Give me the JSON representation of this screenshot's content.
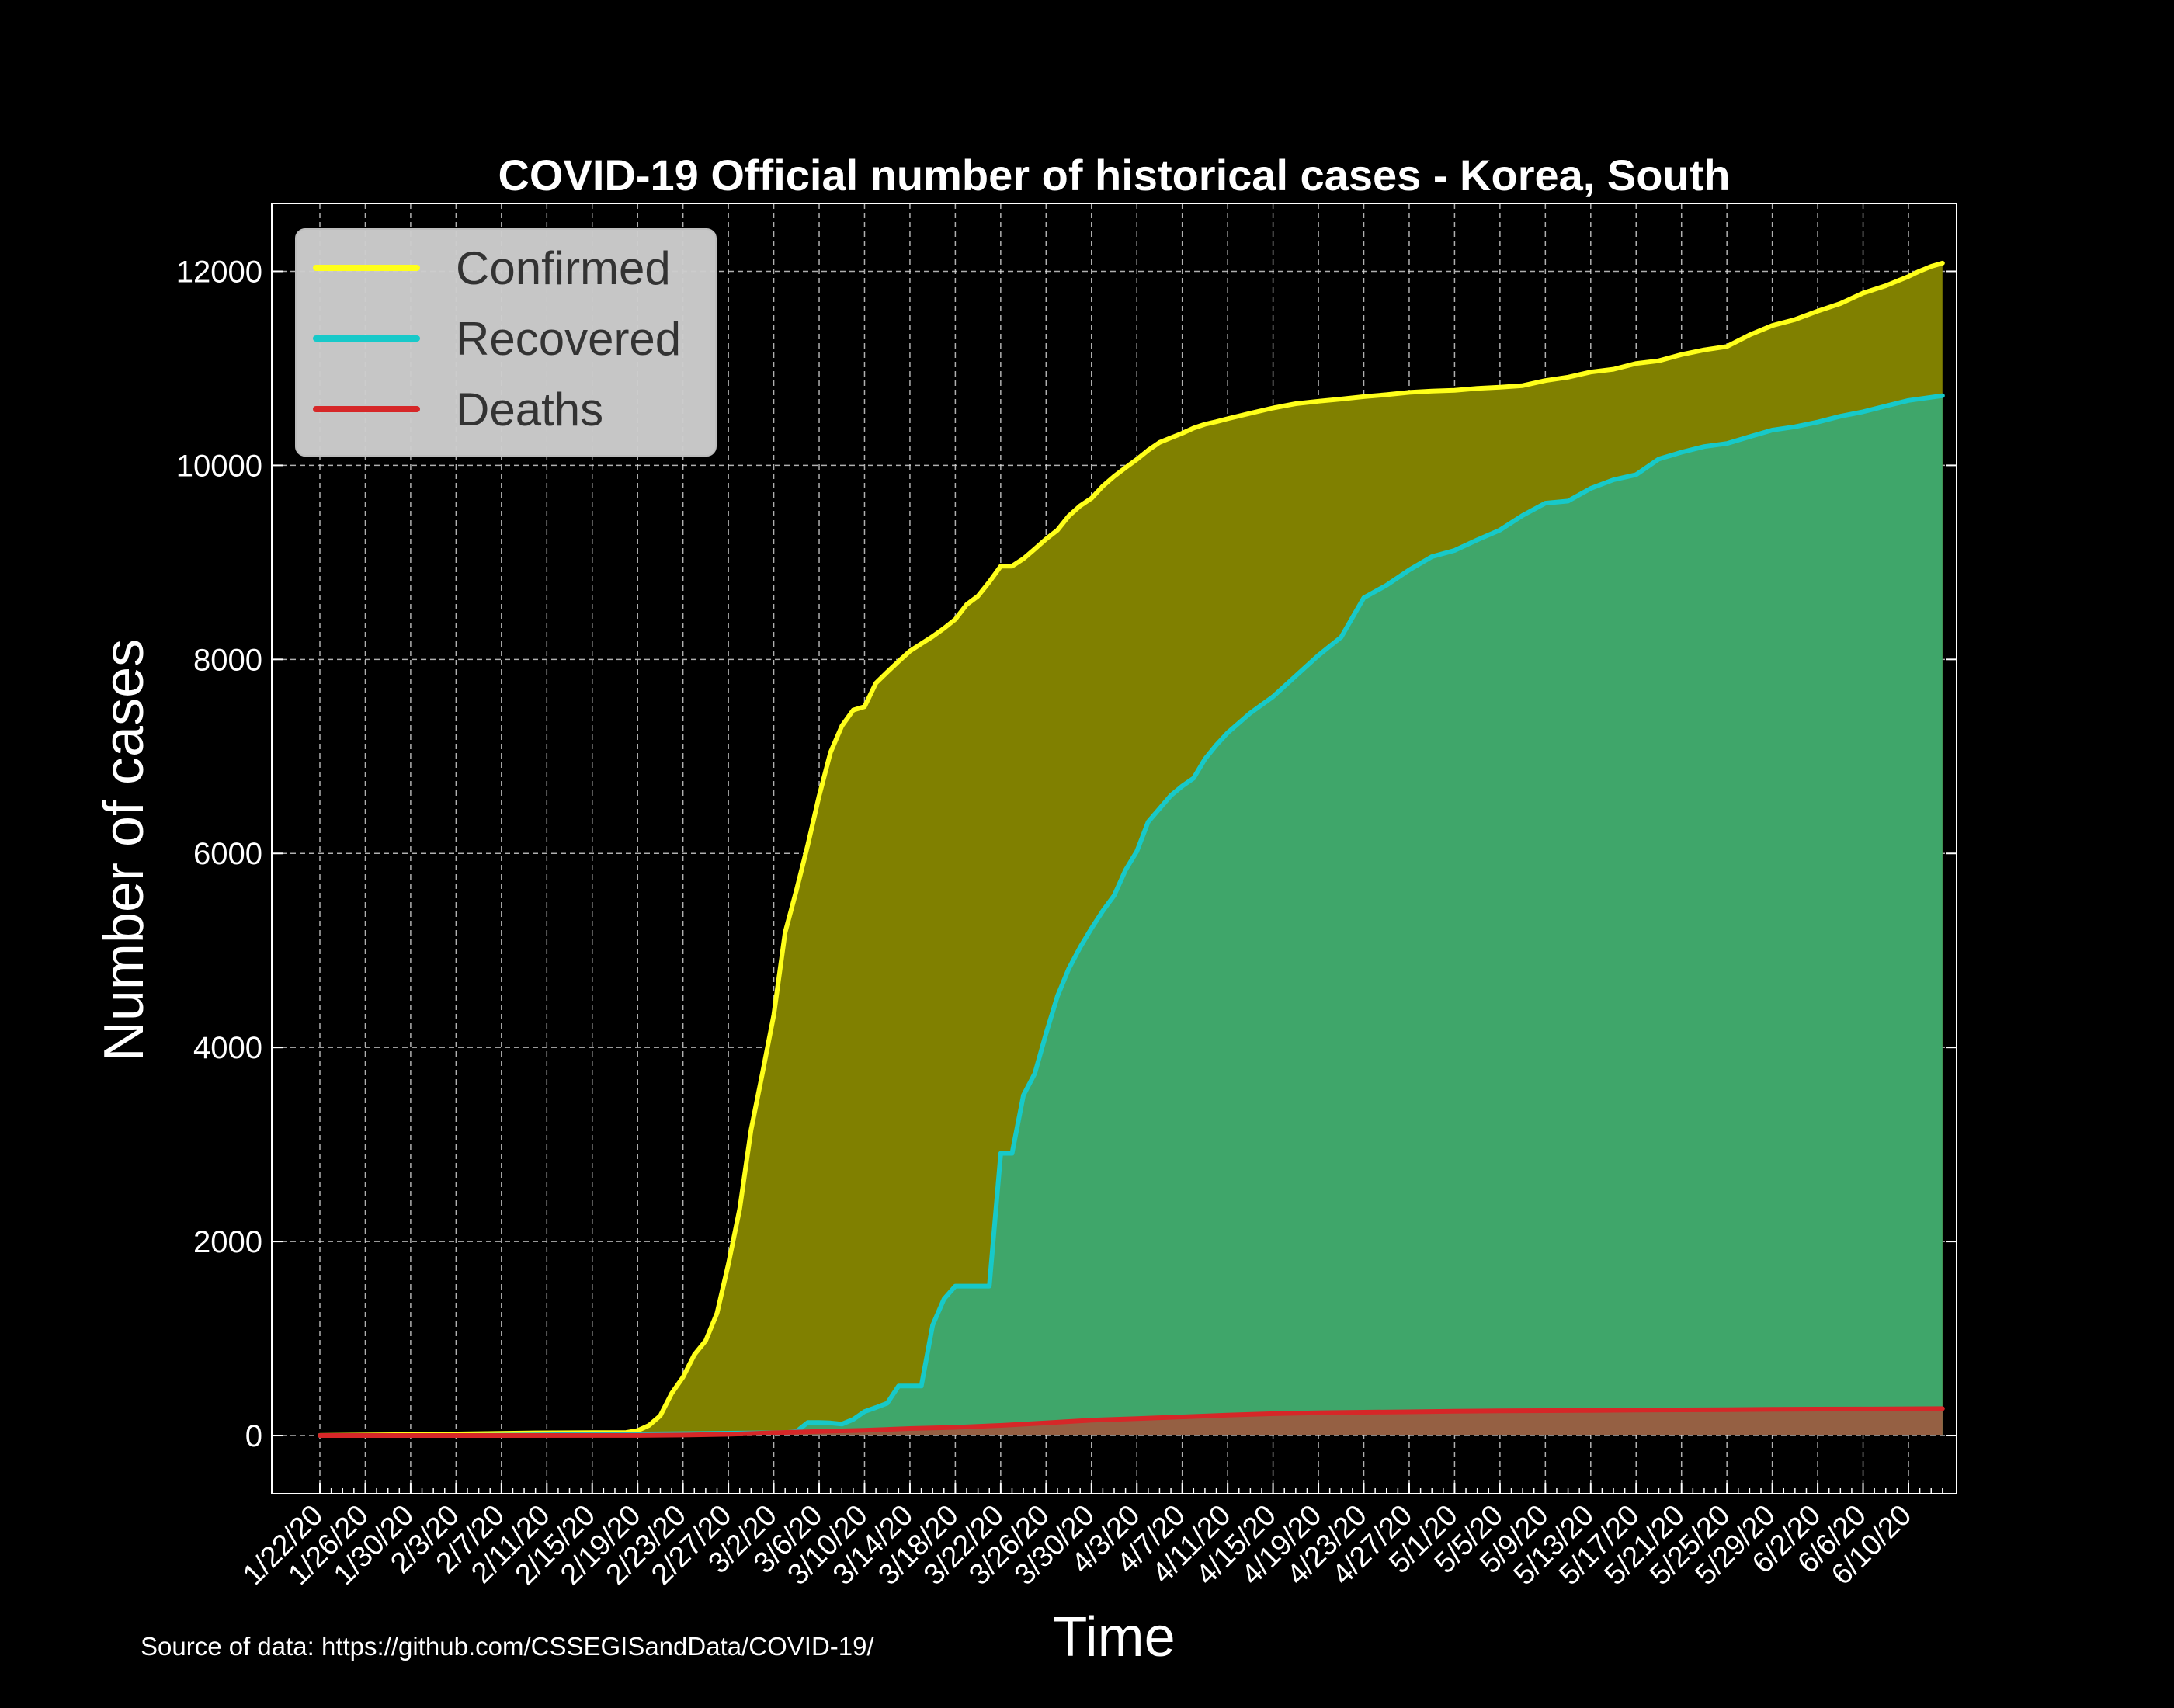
{
  "colors": {
    "background": "#000000",
    "confirmed_line": "#ffff1a",
    "confirmed_fill": "#808000",
    "recovered_line": "#17c9c9",
    "recovered_fill": "#3fa66a",
    "deaths_line": "#d62728",
    "deaths_fill": "#956043",
    "grid": "#dddddd",
    "legend_bg": "#cccccc"
  },
  "source_text": "Source of data: https://github.com/CSSEGISandData/COVID-19/",
  "chart_data": {
    "type": "area",
    "title": "COVID-19 Official number of historical cases - Korea, South",
    "xlabel": "Time",
    "ylabel": "Number of cases",
    "ylim": [
      -600,
      12700
    ],
    "yticks": [
      0,
      2000,
      4000,
      6000,
      8000,
      10000,
      12000
    ],
    "grid": true,
    "legend_position": "top-left",
    "x_start": "1/22/20",
    "x_end": "6/10/20",
    "x_tick_labels": [
      "1/22/20",
      "1/26/20",
      "1/30/20",
      "2/3/20",
      "2/7/20",
      "2/11/20",
      "2/15/20",
      "2/19/20",
      "2/23/20",
      "2/27/20",
      "3/2/20",
      "3/6/20",
      "3/10/20",
      "3/14/20",
      "3/18/20",
      "3/22/20",
      "3/26/20",
      "3/30/20",
      "4/3/20",
      "4/7/20",
      "4/11/20",
      "4/15/20",
      "4/19/20",
      "4/23/20",
      "4/27/20",
      "5/1/20",
      "5/5/20",
      "5/9/20",
      "5/13/20",
      "5/17/20",
      "5/21/20",
      "5/25/20",
      "5/29/20",
      "6/2/20",
      "6/6/20",
      "6/10/20"
    ],
    "series": [
      {
        "name": "Confirmed",
        "points": [
          [
            "1/22/20",
            1
          ],
          [
            "1/31/20",
            11
          ],
          [
            "2/10/20",
            27
          ],
          [
            "2/18/20",
            31
          ],
          [
            "2/19/20",
            51
          ],
          [
            "2/20/20",
            104
          ],
          [
            "2/21/20",
            204
          ],
          [
            "2/22/20",
            433
          ],
          [
            "2/23/20",
            602
          ],
          [
            "2/24/20",
            833
          ],
          [
            "2/25/20",
            977
          ],
          [
            "2/26/20",
            1261
          ],
          [
            "2/27/20",
            1766
          ],
          [
            "2/28/20",
            2337
          ],
          [
            "2/29/20",
            3150
          ],
          [
            "3/1/20",
            3736
          ],
          [
            "3/2/20",
            4335
          ],
          [
            "3/3/20",
            5186
          ],
          [
            "3/4/20",
            5621
          ],
          [
            "3/5/20",
            6088
          ],
          [
            "3/6/20",
            6593
          ],
          [
            "3/7/20",
            7041
          ],
          [
            "3/8/20",
            7314
          ],
          [
            "3/9/20",
            7478
          ],
          [
            "3/10/20",
            7513
          ],
          [
            "3/11/20",
            7755
          ],
          [
            "3/12/20",
            7869
          ],
          [
            "3/13/20",
            7979
          ],
          [
            "3/14/20",
            8086
          ],
          [
            "3/15/20",
            8162
          ],
          [
            "3/16/20",
            8236
          ],
          [
            "3/17/20",
            8320
          ],
          [
            "3/18/20",
            8413
          ],
          [
            "3/19/20",
            8565
          ],
          [
            "3/20/20",
            8652
          ],
          [
            "3/21/20",
            8799
          ],
          [
            "3/22/20",
            8961
          ],
          [
            "3/23/20",
            8961
          ],
          [
            "3/24/20",
            9037
          ],
          [
            "3/25/20",
            9137
          ],
          [
            "3/26/20",
            9241
          ],
          [
            "3/27/20",
            9332
          ],
          [
            "3/28/20",
            9478
          ],
          [
            "3/29/20",
            9583
          ],
          [
            "3/30/20",
            9661
          ],
          [
            "3/31/20",
            9786
          ],
          [
            "4/1/20",
            9887
          ],
          [
            "4/2/20",
            9976
          ],
          [
            "4/3/20",
            10062
          ],
          [
            "4/4/20",
            10156
          ],
          [
            "4/5/20",
            10237
          ],
          [
            "4/6/20",
            10284
          ],
          [
            "4/7/20",
            10331
          ],
          [
            "4/8/20",
            10384
          ],
          [
            "4/9/20",
            10423
          ],
          [
            "4/10/20",
            10450
          ],
          [
            "4/11/20",
            10480
          ],
          [
            "4/13/20",
            10537
          ],
          [
            "4/15/20",
            10591
          ],
          [
            "4/17/20",
            10635
          ],
          [
            "4/19/20",
            10661
          ],
          [
            "4/21/20",
            10683
          ],
          [
            "4/23/20",
            10708
          ],
          [
            "4/25/20",
            10728
          ],
          [
            "4/27/20",
            10752
          ],
          [
            "4/29/20",
            10765
          ],
          [
            "5/1/20",
            10774
          ],
          [
            "5/3/20",
            10793
          ],
          [
            "5/5/20",
            10806
          ],
          [
            "5/7/20",
            10822
          ],
          [
            "5/9/20",
            10874
          ],
          [
            "5/11/20",
            10909
          ],
          [
            "5/13/20",
            10962
          ],
          [
            "5/15/20",
            10991
          ],
          [
            "5/17/20",
            11050
          ],
          [
            "5/19/20",
            11078
          ],
          [
            "5/21/20",
            11142
          ],
          [
            "5/23/20",
            11190
          ],
          [
            "5/25/20",
            11225
          ],
          [
            "5/27/20",
            11344
          ],
          [
            "5/29/20",
            11441
          ],
          [
            "5/31/20",
            11503
          ],
          [
            "6/2/20",
            11590
          ],
          [
            "6/4/20",
            11668
          ],
          [
            "6/6/20",
            11776
          ],
          [
            "6/8/20",
            11852
          ],
          [
            "6/10/20",
            11947
          ],
          [
            "6/11/20",
            12003
          ],
          [
            "6/12/20",
            12051
          ],
          [
            "6/13/20",
            12085
          ]
        ]
      },
      {
        "name": "Recovered",
        "points": [
          [
            "1/22/20",
            0
          ],
          [
            "2/4/20",
            0
          ],
          [
            "2/20/20",
            16
          ],
          [
            "3/3/20",
            30
          ],
          [
            "3/4/20",
            41
          ],
          [
            "3/5/20",
            135
          ],
          [
            "3/6/20",
            135
          ],
          [
            "3/7/20",
            130
          ],
          [
            "3/8/20",
            118
          ],
          [
            "3/9/20",
            166
          ],
          [
            "3/10/20",
            247
          ],
          [
            "3/11/20",
            288
          ],
          [
            "3/12/20",
            333
          ],
          [
            "3/13/20",
            510
          ],
          [
            "3/14/20",
            510
          ],
          [
            "3/15/20",
            510
          ],
          [
            "3/16/20",
            1137
          ],
          [
            "3/17/20",
            1407
          ],
          [
            "3/18/20",
            1540
          ],
          [
            "3/19/20",
            1540
          ],
          [
            "3/20/20",
            1540
          ],
          [
            "3/21/20",
            1540
          ],
          [
            "3/22/20",
            2909
          ],
          [
            "3/23/20",
            2909
          ],
          [
            "3/24/20",
            3507
          ],
          [
            "3/25/20",
            3730
          ],
          [
            "3/26/20",
            4144
          ],
          [
            "3/27/20",
            4528
          ],
          [
            "3/28/20",
            4811
          ],
          [
            "3/29/20",
            5033
          ],
          [
            "3/30/20",
            5228
          ],
          [
            "3/31/20",
            5408
          ],
          [
            "4/1/20",
            5567
          ],
          [
            "4/2/20",
            5828
          ],
          [
            "4/3/20",
            6021
          ],
          [
            "4/4/20",
            6325
          ],
          [
            "4/5/20",
            6463
          ],
          [
            "4/6/20",
            6598
          ],
          [
            "4/7/20",
            6694
          ],
          [
            "4/8/20",
            6776
          ],
          [
            "4/9/20",
            6973
          ],
          [
            "4/10/20",
            7117
          ],
          [
            "4/11/20",
            7243
          ],
          [
            "4/13/20",
            7447
          ],
          [
            "4/15/20",
            7616
          ],
          [
            "4/17/20",
            7829
          ],
          [
            "4/19/20",
            8042
          ],
          [
            "4/21/20",
            8229
          ],
          [
            "4/23/20",
            8635
          ],
          [
            "4/25/20",
            8764
          ],
          [
            "4/27/20",
            8922
          ],
          [
            "4/29/20",
            9059
          ],
          [
            "5/1/20",
            9123
          ],
          [
            "5/3/20",
            9232
          ],
          [
            "5/5/20",
            9333
          ],
          [
            "5/7/20",
            9484
          ],
          [
            "5/9/20",
            9610
          ],
          [
            "5/11/20",
            9632
          ],
          [
            "5/13/20",
            9762
          ],
          [
            "5/15/20",
            9851
          ],
          [
            "5/17/20",
            9904
          ],
          [
            "5/19/20",
            10066
          ],
          [
            "5/21/20",
            10135
          ],
          [
            "5/23/20",
            10194
          ],
          [
            "5/25/20",
            10226
          ],
          [
            "5/27/20",
            10295
          ],
          [
            "5/29/20",
            10363
          ],
          [
            "5/31/20",
            10398
          ],
          [
            "6/2/20",
            10446
          ],
          [
            "6/4/20",
            10506
          ],
          [
            "6/6/20",
            10552
          ],
          [
            "6/8/20",
            10611
          ],
          [
            "6/10/20",
            10669
          ],
          [
            "6/13/20",
            10718
          ]
        ]
      },
      {
        "name": "Deaths",
        "points": [
          [
            "1/22/20",
            0
          ],
          [
            "2/19/20",
            1
          ],
          [
            "2/23/20",
            5
          ],
          [
            "2/27/20",
            13
          ],
          [
            "3/2/20",
            28
          ],
          [
            "3/6/20",
            42
          ],
          [
            "3/10/20",
            54
          ],
          [
            "3/14/20",
            72
          ],
          [
            "3/18/20",
            84
          ],
          [
            "3/22/20",
            104
          ],
          [
            "3/26/20",
            131
          ],
          [
            "3/30/20",
            158
          ],
          [
            "4/3/20",
            174
          ],
          [
            "4/7/20",
            192
          ],
          [
            "4/11/20",
            211
          ],
          [
            "4/15/20",
            225
          ],
          [
            "4/19/20",
            234
          ],
          [
            "4/23/20",
            240
          ],
          [
            "4/27/20",
            244
          ],
          [
            "5/1/20",
            250
          ],
          [
            "5/5/20",
            254
          ],
          [
            "5/9/20",
            256
          ],
          [
            "5/13/20",
            259
          ],
          [
            "5/17/20",
            262
          ],
          [
            "5/21/20",
            264
          ],
          [
            "5/25/20",
            266
          ],
          [
            "5/29/20",
            270
          ],
          [
            "6/2/20",
            272
          ],
          [
            "6/6/20",
            273
          ],
          [
            "6/13/20",
            277
          ]
        ]
      }
    ]
  }
}
